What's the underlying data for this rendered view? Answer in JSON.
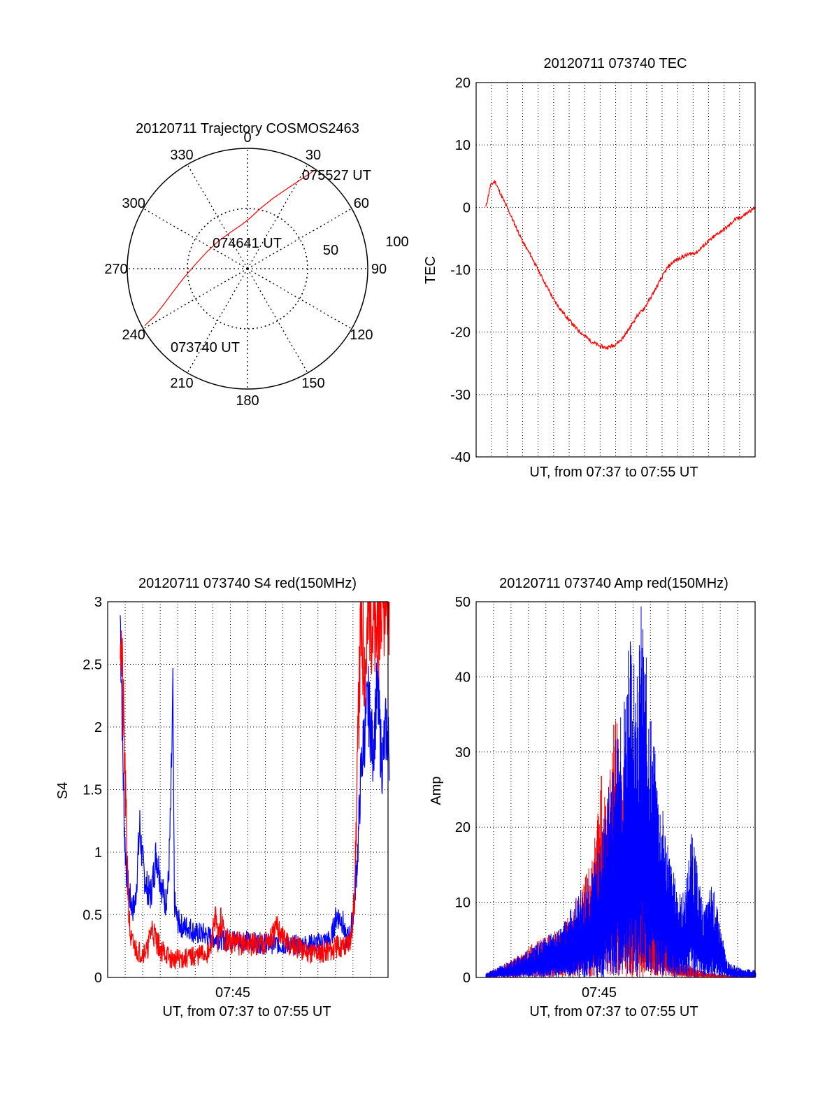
{
  "chart_data": [
    {
      "type": "polar",
      "title": "20120711 Trajectory COSMOS2463",
      "azimuth_labels": [
        "0",
        "30",
        "60",
        "90",
        "120",
        "150",
        "180",
        "210",
        "240",
        "270",
        "300",
        "330"
      ],
      "radial_labels": [
        "50",
        "100"
      ],
      "annotations": [
        "075527 UT",
        "074641 UT",
        "073740 UT"
      ],
      "series": [
        {
          "color": "#ff0000",
          "points": [
            [
              241,
              88
            ],
            [
              243,
              78
            ],
            [
              247,
              68
            ],
            [
              253,
              58
            ],
            [
              262,
              48
            ],
            [
              275,
              39
            ],
            [
              292,
              33
            ],
            [
              312,
              30
            ],
            [
              334,
              30
            ],
            [
              352,
              33
            ],
            [
              3,
              38
            ],
            [
              12,
              46
            ],
            [
              20,
              56
            ],
            [
              26,
              66
            ],
            [
              31,
              78
            ],
            [
              34,
              88
            ]
          ]
        }
      ]
    },
    {
      "type": "line",
      "title": "20120711 073740 TEC",
      "xlabel": "UT, from 07:37 to 07:55 UT",
      "ylabel": "TEC",
      "ylim": [
        -40,
        20
      ],
      "yticks": [
        "20",
        "10",
        "0",
        "-10",
        "-20",
        "-30",
        "-40"
      ],
      "grid": true,
      "series": [
        {
          "color": "#ff0000",
          "x": [
            0,
            0.3,
            0.6,
            1.0,
            1.5,
            2.0,
            2.5,
            3.0,
            3.5,
            4.0,
            4.5,
            5.0,
            5.5,
            6.0,
            6.5,
            7.0,
            7.5,
            8.0,
            8.5,
            9.0,
            9.5,
            10.0,
            10.5,
            11.0,
            11.5,
            12.0,
            12.5,
            13.0,
            13.5,
            14.0,
            14.5,
            15.0,
            15.5,
            16.0,
            16.5,
            17.0,
            17.5,
            17.9
          ],
          "y": [
            0,
            3.5,
            4.2,
            2.0,
            -0.5,
            -3.2,
            -5.8,
            -7.8,
            -10.2,
            -12.5,
            -14.8,
            -16.5,
            -18.0,
            -19.4,
            -20.5,
            -21.5,
            -22.2,
            -22.5,
            -22.1,
            -21.2,
            -19.5,
            -17.5,
            -16.2,
            -14.2,
            -12.0,
            -9.8,
            -8.6,
            -8.0,
            -7.5,
            -7.2,
            -6.0,
            -5.0,
            -4.0,
            -3.2,
            -2.0,
            -1.5,
            -0.6,
            0
          ]
        }
      ]
    },
    {
      "type": "line",
      "title": "20120711 073740 S4 red(150MHz)",
      "xlabel": "UT, from 07:37 to 07:55 UT",
      "ylabel": "S4",
      "ylim": [
        0,
        3
      ],
      "yticks": [
        "3",
        "2.5",
        "2",
        "1.5",
        "1",
        "0.5",
        "0"
      ],
      "xticks": [
        "07:45"
      ],
      "grid": true,
      "series": [
        {
          "color": "#0000ff",
          "x": [
            0.0,
            0.1,
            0.2,
            0.3,
            0.45,
            0.55,
            0.7,
            0.85,
            1.0,
            1.1,
            1.3,
            1.5,
            1.7,
            2.0,
            2.2,
            2.4,
            2.6,
            2.8,
            3.0,
            3.2,
            3.35,
            3.5,
            3.6,
            3.8,
            4.2,
            4.6,
            5.0,
            5.5,
            6.0,
            7.0,
            8.0,
            9.0,
            10.0,
            11.0,
            12.0,
            13.0,
            14.0,
            14.4,
            14.8,
            15.0,
            15.3,
            15.5,
            15.8,
            16.0,
            16.2,
            16.5,
            16.8,
            17.1,
            17.4,
            17.7,
            17.9
          ],
          "y": [
            2.9,
            2.3,
            1.6,
            1.1,
            0.8,
            0.7,
            0.6,
            0.55,
            0.6,
            0.8,
            1.2,
            0.9,
            0.75,
            0.65,
            0.8,
            1.0,
            0.85,
            0.7,
            0.6,
            0.75,
            1.3,
            2.2,
            0.6,
            0.45,
            0.4,
            0.4,
            0.35,
            0.35,
            0.32,
            0.3,
            0.3,
            0.28,
            0.27,
            0.26,
            0.26,
            0.27,
            0.3,
            0.5,
            0.45,
            0.3,
            0.35,
            0.5,
            1.0,
            1.6,
            1.9,
            2.2,
            1.8,
            2.3,
            1.7,
            2.0,
            1.8
          ]
        },
        {
          "color": "#ff0000",
          "x": [
            0.0,
            0.1,
            0.25,
            0.4,
            0.55,
            0.65,
            0.75,
            0.9,
            1.1,
            1.4,
            1.8,
            2.1,
            2.4,
            2.7,
            3.0,
            3.3,
            3.6,
            3.9,
            4.3,
            5.0,
            6.0,
            6.3,
            6.5,
            6.7,
            7.0,
            7.5,
            8.0,
            9.0,
            10.0,
            10.5,
            11.0,
            12.0,
            13.0,
            14.0,
            14.5,
            15.0,
            15.4,
            15.6,
            15.8,
            16.0,
            16.3,
            16.6,
            17.0,
            17.4,
            17.9
          ],
          "y": [
            3.0,
            2.5,
            1.9,
            1.2,
            0.6,
            0.35,
            0.28,
            0.25,
            0.22,
            0.2,
            0.22,
            0.4,
            0.3,
            0.22,
            0.2,
            0.15,
            0.14,
            0.15,
            0.15,
            0.17,
            0.2,
            0.5,
            0.3,
            0.45,
            0.3,
            0.28,
            0.27,
            0.26,
            0.3,
            0.4,
            0.28,
            0.22,
            0.2,
            0.22,
            0.25,
            0.25,
            0.35,
            0.7,
            1.8,
            2.8,
            2.5,
            3.0,
            2.7,
            3.0,
            2.9
          ]
        }
      ]
    },
    {
      "type": "line",
      "title": "20120711 073740 Amp red(150MHz)",
      "xlabel": "UT, from 07:37 to 07:55 UT",
      "ylabel": "Amp",
      "ylim": [
        0,
        50
      ],
      "yticks": [
        "50",
        "40",
        "30",
        "20",
        "10",
        "0"
      ],
      "xticks": [
        "07:45"
      ],
      "grid": true,
      "series": [
        {
          "color": "#ff0000",
          "x": [
            0,
            1,
            2,
            3,
            4,
            5,
            5.5,
            6,
            6.5,
            7,
            7.3,
            7.6,
            8,
            8.3,
            8.6,
            9,
            9.3,
            9.6,
            10,
            10.3,
            10.6,
            11,
            11.3,
            11.6,
            12,
            12.3,
            12.6,
            13,
            14,
            15,
            16
          ],
          "y": [
            0.5,
            1.5,
            2.5,
            4,
            5,
            6,
            8,
            10,
            12,
            14,
            18,
            26,
            22,
            28,
            34,
            25,
            30,
            20,
            16,
            13,
            12,
            10,
            9,
            8,
            6,
            5,
            4,
            2,
            1,
            0.5,
            0.3
          ]
        },
        {
          "color": "#0000ff",
          "x": [
            0,
            1,
            2,
            3,
            4,
            5,
            5.5,
            6,
            6.5,
            7,
            7.5,
            8,
            8.5,
            9,
            9.3,
            9.6,
            10,
            10.3,
            10.6,
            11,
            11.3,
            11.6,
            12,
            12.3,
            12.6,
            13,
            13.3,
            13.6,
            14,
            14.5,
            15,
            16,
            17,
            17.9
          ],
          "y": [
            0.5,
            1.5,
            2.5,
            3.5,
            5,
            6,
            8,
            10,
            11,
            13,
            16,
            22,
            28,
            32,
            38,
            42,
            35,
            46,
            40,
            32,
            26,
            22,
            18,
            14,
            12,
            10,
            12,
            18,
            14,
            8,
            12,
            2,
            1,
            1
          ]
        }
      ]
    }
  ]
}
